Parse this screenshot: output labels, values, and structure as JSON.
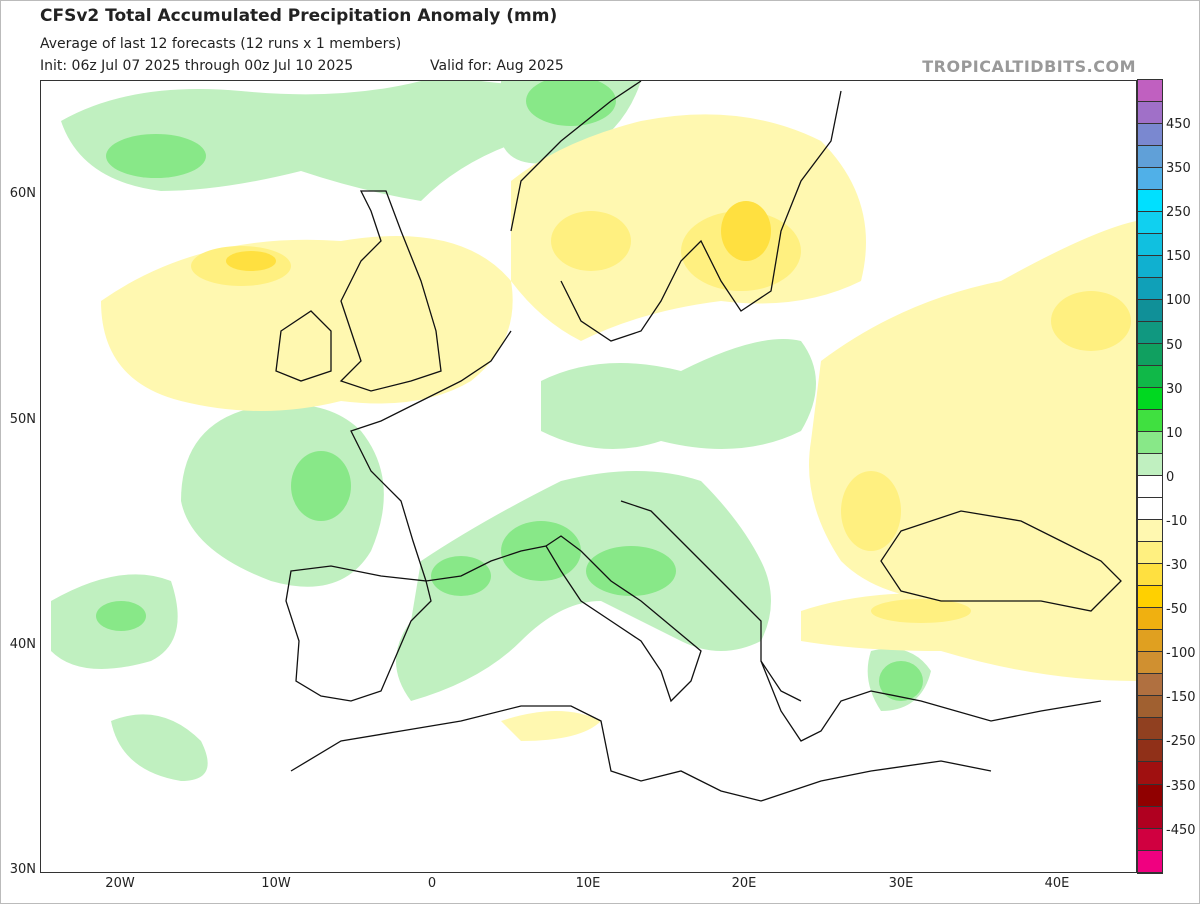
{
  "header": {
    "title": "CFSv2 Total Accumulated Precipitation Anomaly (mm)",
    "subtitle": "Average of last 12 forecasts (12 runs x 1 members)",
    "init": "Init: 06z Jul 07 2025 through 00z Jul 10 2025",
    "valid": "Valid for: Aug 2025",
    "watermark": "TROPICALTIDBITS.COM"
  },
  "axes": {
    "lat_labels": [
      "60N",
      "50N",
      "40N",
      "30N"
    ],
    "lon_labels": [
      "20W",
      "10W",
      "0",
      "10E",
      "20E",
      "30E",
      "40E"
    ]
  },
  "colorbar": {
    "labels": [
      "450",
      "350",
      "250",
      "150",
      "100",
      "50",
      "30",
      "10",
      "0",
      "-10",
      "-30",
      "-50",
      "-100",
      "-150",
      "-250",
      "-350",
      "-450"
    ],
    "colors": [
      "#c060c0",
      "#a070c8",
      "#7a88d0",
      "#60a0d8",
      "#50b0e8",
      "#00e0ff",
      "#10d0f0",
      "#10c0e0",
      "#10b0d0",
      "#10a0b8",
      "#109098",
      "#109880",
      "#10a060",
      "#10b848",
      "#00d820",
      "#40e040",
      "#88e888",
      "#c0f0c0",
      "#ffffff",
      "#ffffff",
      "#fff8b0",
      "#fff080",
      "#ffe040",
      "#ffd000",
      "#f0b010",
      "#e0a020",
      "#d09030",
      "#b07040",
      "#a06030",
      "#904020",
      "#903018",
      "#a01010",
      "#900000",
      "#b00020",
      "#d00040",
      "#f00080"
    ]
  },
  "map_colors": {
    "light_green": "#c0f0c0",
    "green": "#88e888",
    "mid_green": "#40d040",
    "light_yellow": "#fff8b0",
    "yellow": "#fff080",
    "gold": "#ffe040"
  }
}
